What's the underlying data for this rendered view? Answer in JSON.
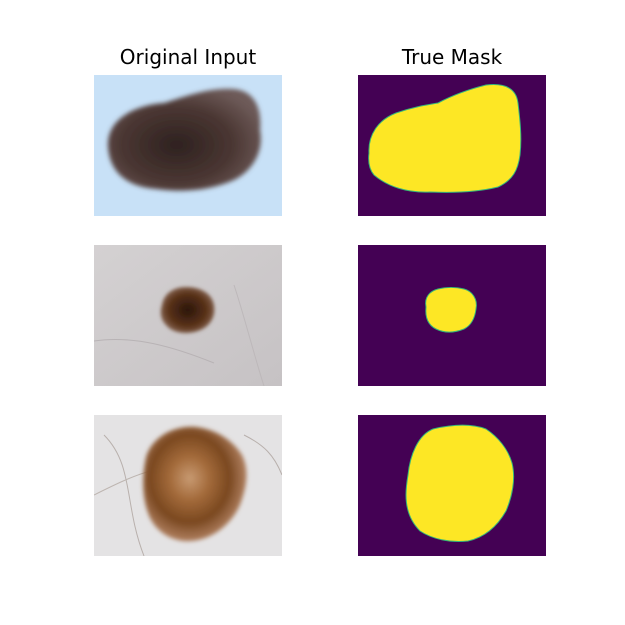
{
  "columns": [
    {
      "title": "Original Input"
    },
    {
      "title": "True Mask"
    }
  ],
  "rows": [
    {
      "input": {
        "background": "#c8e1f7",
        "lesion_color": "#3b2a26",
        "description_icon": "dermoscopy-image"
      },
      "mask": {
        "background": "#440154",
        "fill": "#fde725",
        "edge": "#35b779"
      }
    },
    {
      "input": {
        "background": "#cfcccd",
        "lesion_color": "#4a2a16",
        "description_icon": "dermoscopy-image"
      },
      "mask": {
        "background": "#440154",
        "fill": "#fde725",
        "edge": "#35b779"
      }
    },
    {
      "input": {
        "background": "#e4e3e4",
        "lesion_color": "#8a5425",
        "description_icon": "dermoscopy-image"
      },
      "mask": {
        "background": "#440154",
        "fill": "#fde725",
        "edge": "#35b779"
      }
    }
  ]
}
